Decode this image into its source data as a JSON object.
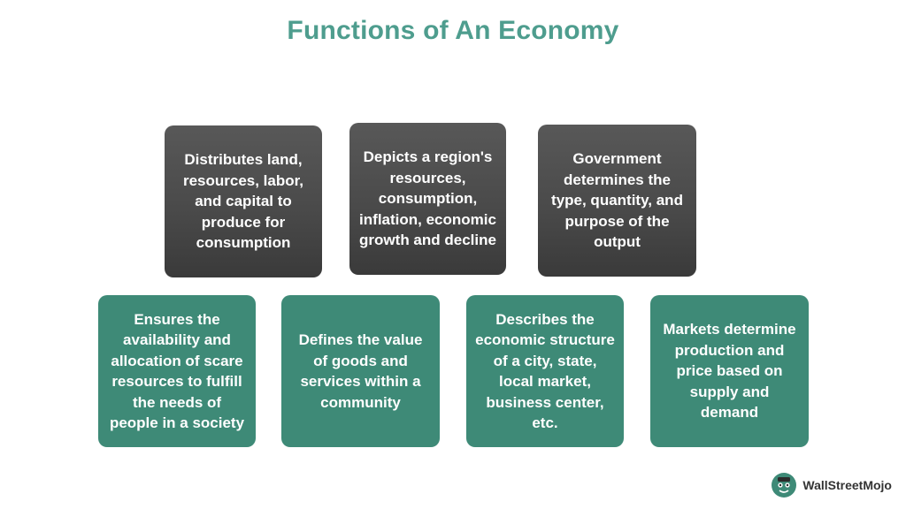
{
  "title": "Functions of An Economy",
  "top_boxes": [
    "Distributes land, resources, labor, and capital to produce for consumption",
    "Depicts a region's resources, consumption, inflation, economic growth and decline",
    "Government determines the type, quantity, and purpose of the output"
  ],
  "bottom_boxes": [
    "Ensures the availability and allocation of scare resources to fulfill the needs of people in a society",
    "Defines the value of goods and services within a community",
    "Describes the economic structure of a city, state, local market, business center, etc.",
    "Markets determine production and price based on supply and demand"
  ],
  "logo": {
    "text": "WallStreetMojo"
  },
  "colors": {
    "title": "#4e9d8e",
    "dark_box": "#4a4a4a",
    "green_box": "#3e8a77"
  }
}
